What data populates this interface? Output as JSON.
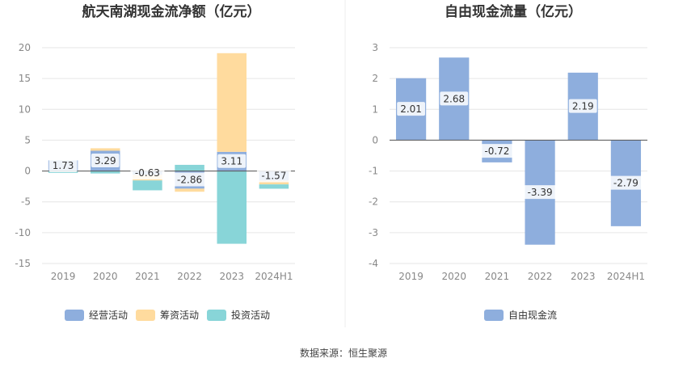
{
  "source_text": "数据来源：恒生聚源",
  "colors": {
    "operating": "#8eaedd",
    "financing": "#ffdb9e",
    "investing": "#88d5d8",
    "fcf": "#8eaedd",
    "axis_text": "#888888",
    "grid": "#e6e6e6",
    "title": "#333333",
    "label_bg": "#ffffff"
  },
  "chart_data": [
    {
      "type": "bar",
      "stacked": true,
      "title": "航天南湖现金流净额（亿元）",
      "categories": [
        "2019",
        "2020",
        "2021",
        "2022",
        "2023",
        "2024H1"
      ],
      "yticks": [
        "20",
        "15",
        "10",
        "5",
        "0",
        "-5",
        "-10",
        "-15"
      ],
      "ylim": [
        -15,
        20
      ],
      "grid": true,
      "legend_position": "bottom",
      "series": [
        {
          "name": "经营活动",
          "values": [
            1.73,
            3.29,
            -0.63,
            -2.86,
            3.11,
            -1.57
          ]
        },
        {
          "name": "筹资活动",
          "values": [
            0.0,
            0.4,
            -0.9,
            -0.5,
            16.0,
            -0.6
          ]
        },
        {
          "name": "投资活动",
          "values": [
            -0.3,
            -0.4,
            -1.6,
            1.0,
            -11.8,
            -0.7
          ]
        }
      ],
      "data_labels": [
        "1.73",
        "3.29",
        "-0.63",
        "-2.86",
        "3.11",
        "-1.57"
      ]
    },
    {
      "type": "bar",
      "title": "自由现金流量（亿元）",
      "categories": [
        "2019",
        "2020",
        "2021",
        "2022",
        "2023",
        "2024H1"
      ],
      "yticks": [
        "3",
        "2",
        "1",
        "0",
        "-1",
        "-2",
        "-3",
        "-4"
      ],
      "ylim": [
        -4,
        3
      ],
      "grid": true,
      "legend_position": "bottom",
      "series": [
        {
          "name": "自由现金流",
          "values": [
            2.01,
            2.68,
            -0.72,
            -3.39,
            2.19,
            -2.79
          ]
        }
      ],
      "data_labels": [
        "2.01",
        "2.68",
        "-0.72",
        "-3.39",
        "2.19",
        "-2.79"
      ]
    }
  ]
}
